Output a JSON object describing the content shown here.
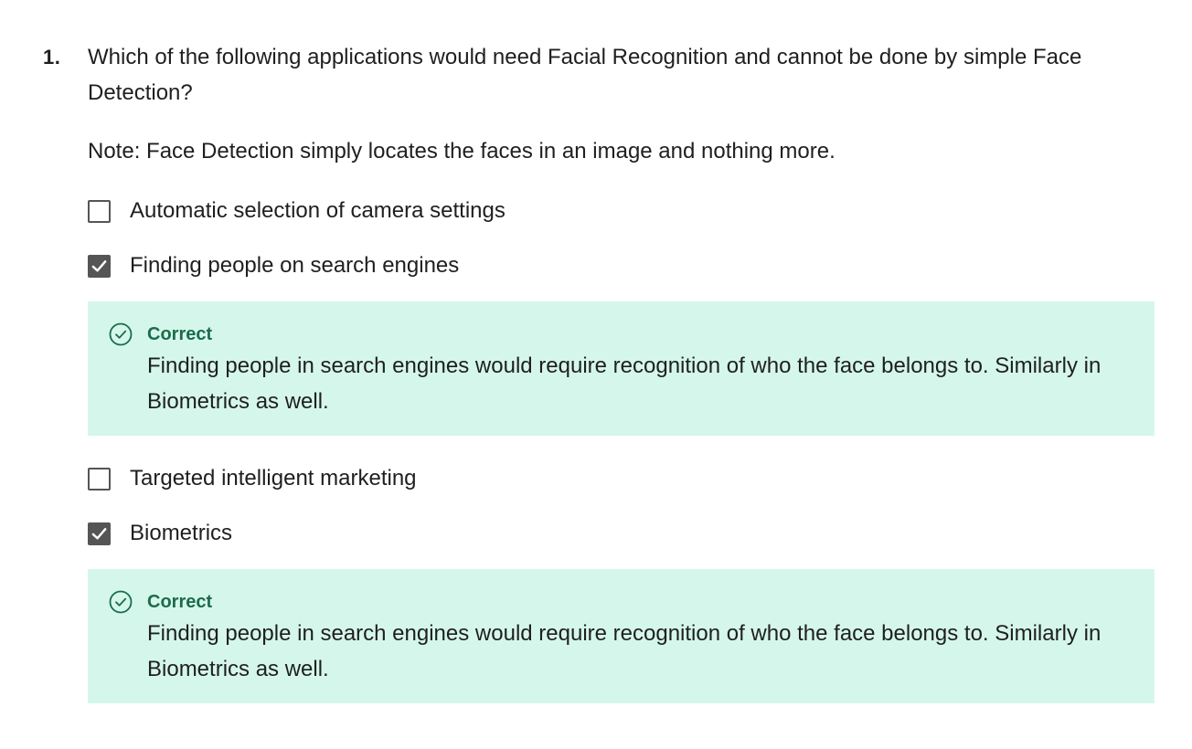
{
  "question": {
    "number": "1.",
    "text": "Which of the following applications would need Facial Recognition and cannot be done by simple Face Detection?",
    "note": "Note: Face Detection simply locates the faces in an image and nothing more."
  },
  "options": [
    {
      "label": "Automatic selection of camera settings",
      "checked": false
    },
    {
      "label": "Finding people on search engines",
      "checked": true
    },
    {
      "label": "Targeted intelligent marketing",
      "checked": false
    },
    {
      "label": "Biometrics",
      "checked": true
    }
  ],
  "feedback": [
    {
      "icon": "check-circle-icon",
      "status": "Correct",
      "text": "Finding people in search engines would require recognition of who the face belongs to. Similarly in Biometrics as well."
    },
    {
      "icon": "check-circle-icon",
      "status": "Correct",
      "text": "Finding people in search engines would require recognition of who the face belongs to. Similarly in Biometrics as well."
    }
  ],
  "colors": {
    "feedback_background": "#d5f7eb",
    "correct_accent": "#1d6b4c",
    "checkbox": "#555555"
  }
}
